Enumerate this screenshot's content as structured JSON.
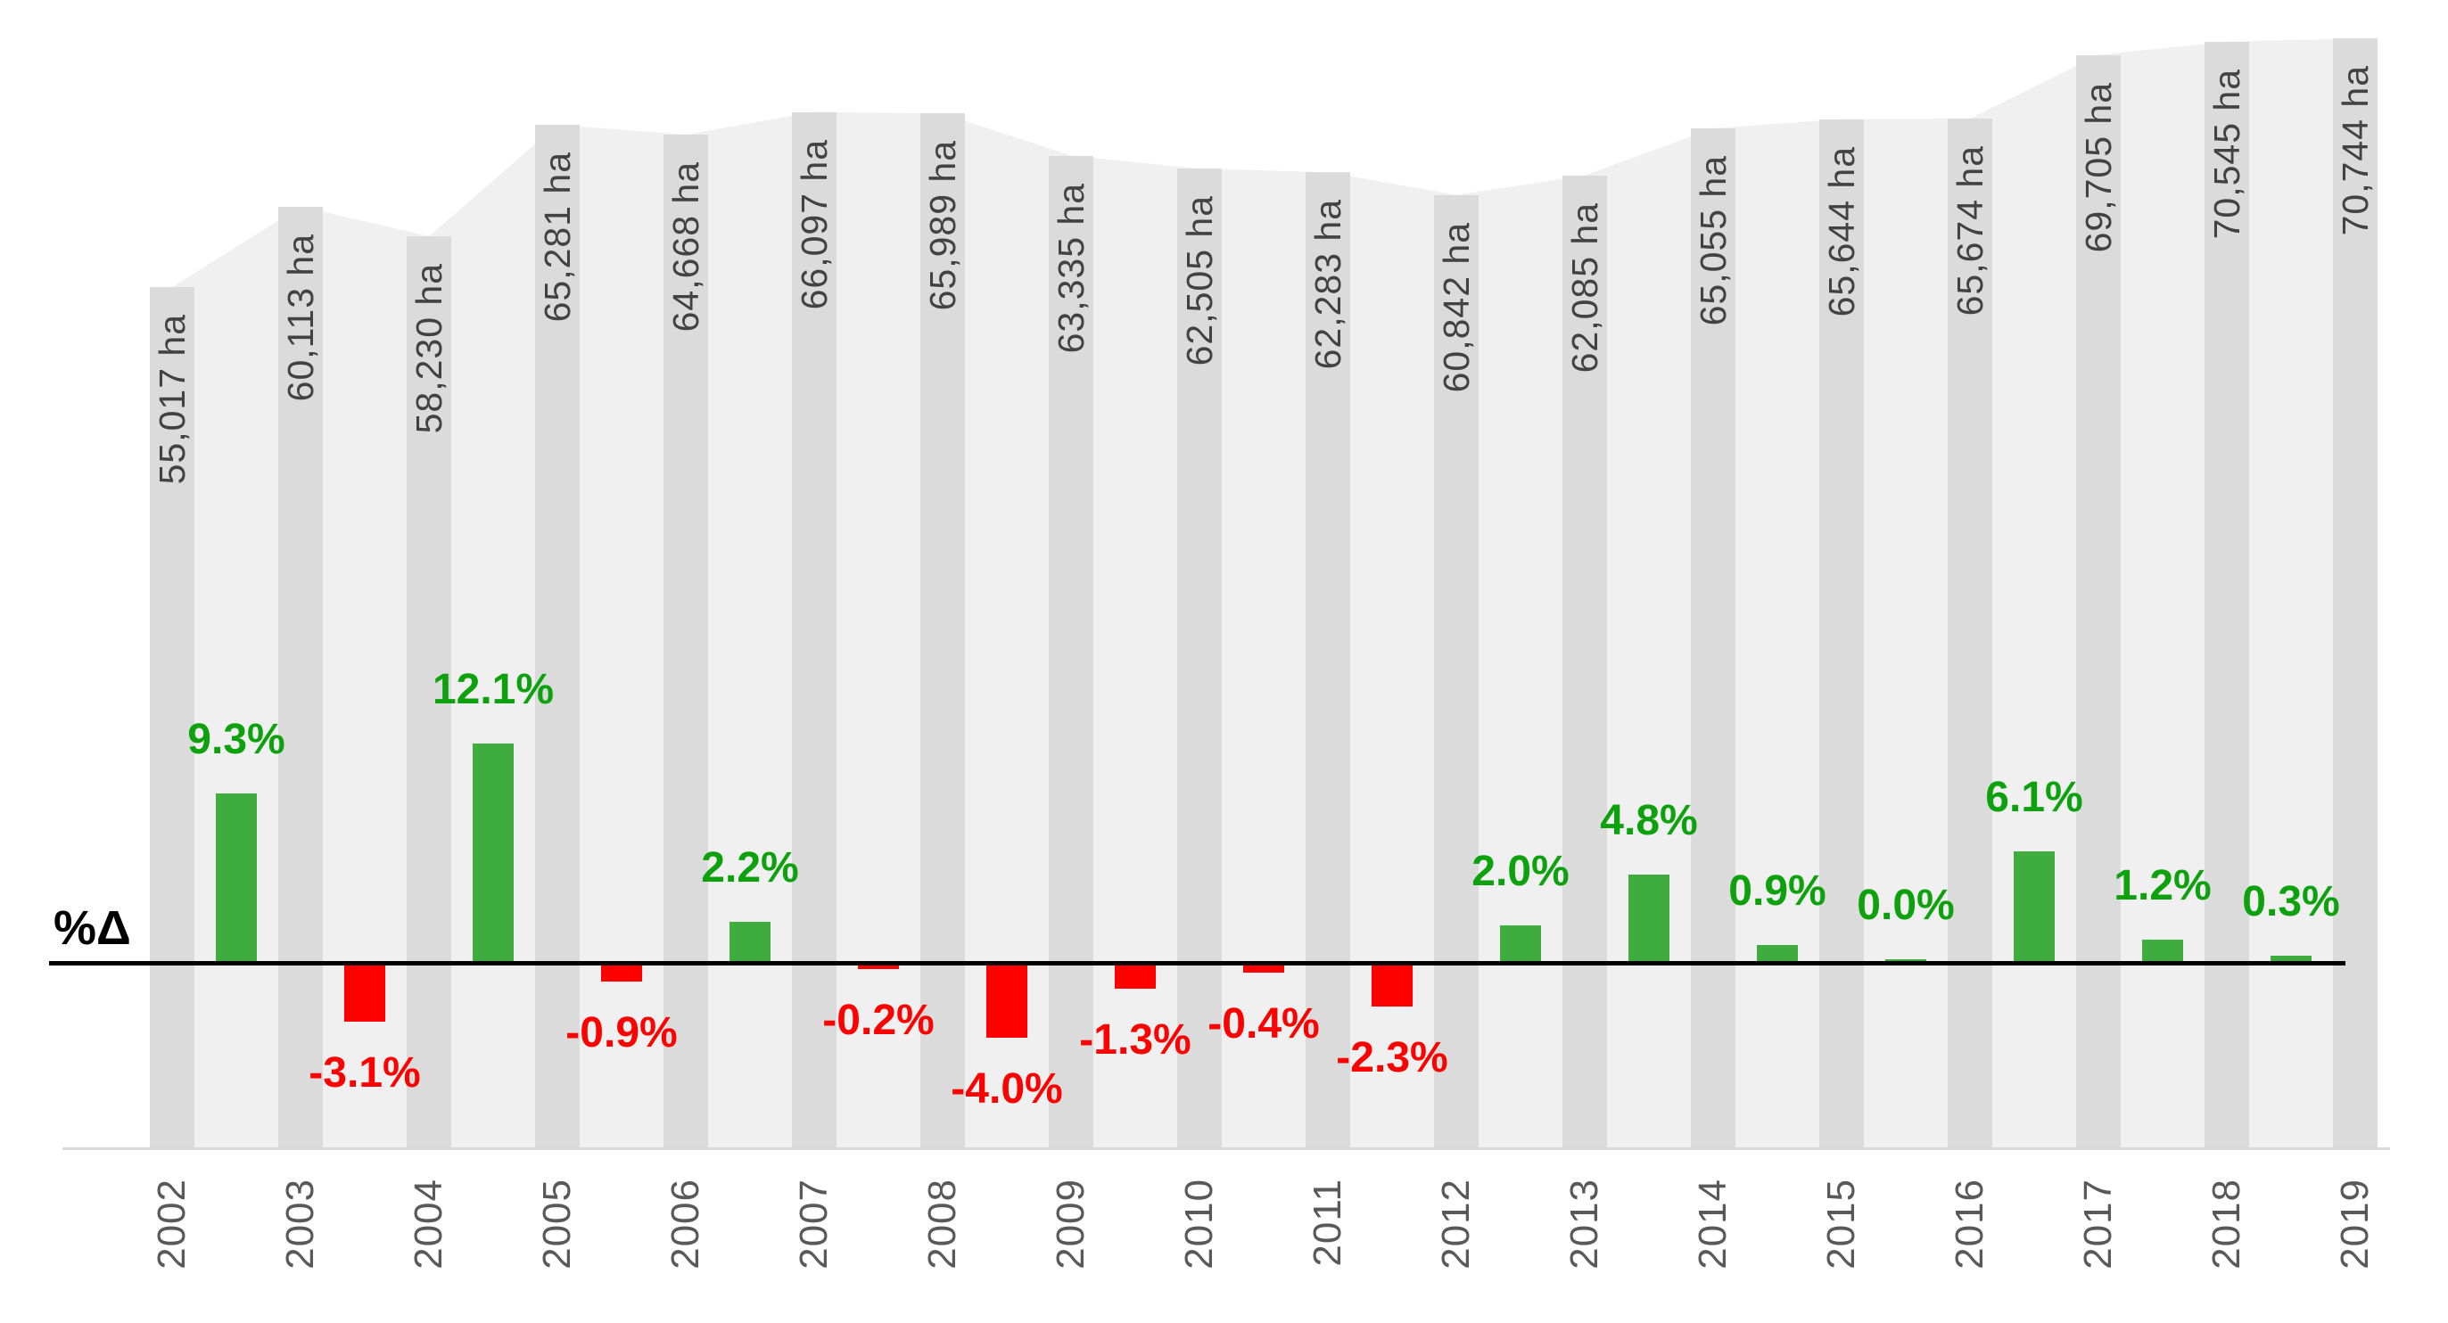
{
  "chart_data": {
    "type": "combo",
    "title": "",
    "categories": [
      "2002",
      "2003",
      "2004",
      "2005",
      "2006",
      "2007",
      "2008",
      "2009",
      "2010",
      "2011",
      "2012",
      "2013",
      "2014",
      "2015",
      "2016",
      "2017",
      "2018",
      "2019"
    ],
    "series": [
      {
        "name": "area-hectares",
        "type": "area",
        "unit": "ha",
        "values": [
          55017,
          60113,
          58230,
          65281,
          64668,
          66097,
          65989,
          63335,
          62505,
          62283,
          60842,
          62085,
          65055,
          65644,
          65674,
          69705,
          70545,
          70744
        ],
        "labels": [
          "55,017 ha",
          "60,113 ha",
          "58,230 ha",
          "65,281 ha",
          "64,668 ha",
          "66,097 ha",
          "65,989 ha",
          "63,335 ha",
          "62,505 ha",
          "62,283 ha",
          "60,842 ha",
          "62,085 ha",
          "65,055 ha",
          "65,644 ha",
          "65,674 ha",
          "69,705 ha",
          "70,545 ha",
          "70,744 ha"
        ]
      },
      {
        "name": "percent-change-yoy",
        "type": "bar",
        "plotted_between_categories": true,
        "values": [
          9.3,
          -3.1,
          12.1,
          -0.9,
          2.2,
          -0.2,
          -4.0,
          -1.3,
          -0.4,
          -2.3,
          2.0,
          4.8,
          0.9,
          0.0,
          6.1,
          1.2,
          0.3
        ],
        "labels": [
          "9.3%",
          "-3.1%",
          "12.1%",
          "-0.9%",
          "2.2%",
          "-0.2%",
          "-4.0%",
          "-1.3%",
          "-0.4%",
          "-2.3%",
          "2.0%",
          "4.8%",
          "0.9%",
          "0.0%",
          "6.1%",
          "1.2%",
          "0.3%"
        ]
      }
    ],
    "axis_label_left": "%Δ",
    "legend": "none",
    "gridlines": "off",
    "colors": {
      "area_fill": "#f0f0f0",
      "column_fill": "#dbdbdb",
      "hectare_label_text": "#424242",
      "year_label_text": "#595959",
      "positive_bar": "#3fac3f",
      "positive_text": "#0da10d",
      "negative_bar": "#fd0000",
      "negative_text": "#fd0000",
      "zero_line": "#000000",
      "baseline_axis": "#d9d9d9"
    }
  }
}
